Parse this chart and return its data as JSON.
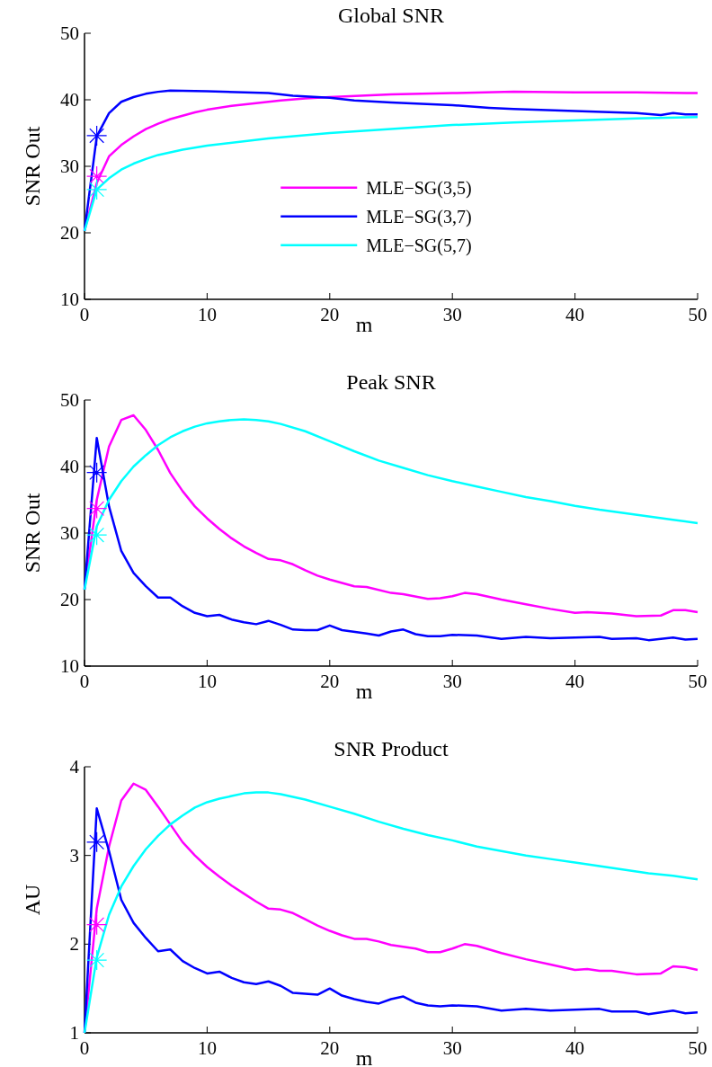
{
  "chart_data": [
    {
      "type": "line",
      "title": "Global SNR",
      "xlabel": "m",
      "ylabel": "SNR Out",
      "xlim": [
        0,
        50
      ],
      "xticks": [
        0,
        10,
        20,
        30,
        40,
        50
      ],
      "ylim": [
        10,
        50
      ],
      "yticks": [
        10,
        20,
        30,
        40,
        50
      ],
      "grid": false,
      "legend": "center",
      "marker": "none",
      "line_style": "solid",
      "series": [
        {
          "name": "MLE−SG(3,5)",
          "color": "#ff00ff",
          "x": [
            0,
            1,
            2,
            3,
            4,
            5,
            6,
            7,
            8,
            9,
            10,
            12,
            14,
            16,
            18,
            20,
            25,
            30,
            35,
            40,
            45,
            50
          ],
          "values": [
            20.3,
            27.5,
            31.5,
            33.2,
            34.5,
            35.6,
            36.4,
            37.1,
            37.6,
            38.1,
            38.5,
            39.1,
            39.5,
            39.9,
            40.2,
            40.4,
            40.8,
            41.0,
            41.2,
            41.1,
            41.1,
            41.0
          ]
        },
        {
          "name": "MLE−SG(3,7)",
          "color": "#0000ff",
          "x": [
            0,
            1,
            2,
            3,
            4,
            5,
            6,
            7,
            10,
            15,
            17,
            20,
            22,
            25,
            30,
            33,
            35,
            40,
            45,
            47,
            48,
            49,
            50
          ],
          "values": [
            20.3,
            34.5,
            38,
            39.7,
            40.4,
            40.9,
            41.2,
            41.4,
            41.3,
            41.0,
            40.6,
            40.3,
            39.9,
            39.6,
            39.2,
            38.8,
            38.6,
            38.3,
            38.0,
            37.7,
            38.0,
            37.8,
            37.8
          ]
        },
        {
          "name": "MLE−SG(5,7)",
          "color": "#00ffff",
          "x": [
            0,
            1,
            2,
            3,
            4,
            5,
            6,
            7,
            8,
            10,
            15,
            20,
            25,
            30,
            35,
            40,
            45,
            50
          ],
          "values": [
            20.3,
            26.5,
            28.2,
            29.5,
            30.4,
            31.1,
            31.7,
            32.1,
            32.5,
            33.1,
            34.2,
            35.0,
            35.6,
            36.2,
            36.6,
            36.9,
            37.2,
            37.4
          ]
        },
        {
          "type": "scatter",
          "marker": "cross",
          "color": "#ff00ff",
          "x": [
            1
          ],
          "values": [
            28.5
          ]
        },
        {
          "type": "scatter",
          "marker": "cross",
          "color": "#0000ff",
          "x": [
            1
          ],
          "values": [
            34.6
          ]
        },
        {
          "type": "scatter",
          "marker": "cross",
          "color": "#00ffff",
          "x": [
            1
          ],
          "values": [
            26.5
          ]
        }
      ]
    },
    {
      "type": "line",
      "title": "Peak SNR",
      "xlabel": "m",
      "ylabel": "SNR Out",
      "xlim": [
        0,
        50
      ],
      "xticks": [
        0,
        10,
        20,
        30,
        40,
        50
      ],
      "ylim": [
        10,
        50
      ],
      "yticks": [
        10,
        20,
        30,
        40,
        50
      ],
      "grid": false,
      "legend": false,
      "marker": "none",
      "line_style": "solid",
      "series": [
        {
          "color": "#ff00ff",
          "x": [
            0,
            1,
            2,
            3,
            4,
            5,
            6,
            7,
            8,
            9,
            10,
            11,
            12,
            13,
            14,
            15,
            16,
            17,
            18,
            19,
            20,
            22,
            23,
            25,
            26,
            28,
            29,
            30,
            31,
            32,
            34,
            36,
            38,
            40,
            41,
            43,
            45,
            47,
            48,
            49,
            50
          ],
          "values": [
            21.5,
            35,
            43,
            47,
            47.7,
            45.5,
            42.5,
            39,
            36.3,
            34,
            32.2,
            30.6,
            29.2,
            28,
            27,
            26.1,
            25.9,
            25.3,
            24.4,
            23.6,
            23,
            22,
            21.9,
            21,
            20.8,
            20.1,
            20.2,
            20.5,
            21,
            20.8,
            20,
            19.3,
            18.6,
            18,
            18.1,
            17.9,
            17.5,
            17.6,
            18.4,
            18.4,
            18.1
          ]
        },
        {
          "color": "#0000ff",
          "x": [
            0,
            1,
            2,
            3,
            4,
            5,
            6,
            7,
            8,
            9,
            10,
            11,
            12,
            13,
            14,
            15,
            16,
            17,
            18,
            19,
            20,
            21,
            23,
            24,
            25,
            26,
            27,
            28,
            29,
            30,
            32,
            34,
            36,
            38,
            40,
            42,
            43,
            45,
            46,
            48,
            49,
            50
          ],
          "values": [
            21.5,
            44.3,
            34,
            27.3,
            24,
            22,
            20.3,
            20.3,
            19,
            18,
            17.5,
            17.7,
            17,
            16.6,
            16.3,
            16.8,
            16.2,
            15.5,
            15.4,
            15.4,
            16.1,
            15.4,
            14.9,
            14.6,
            15.2,
            15.5,
            14.8,
            14.5,
            14.5,
            14.7,
            14.6,
            14.1,
            14.4,
            14.2,
            14.3,
            14.4,
            14.1,
            14.2,
            13.9,
            14.3,
            14.0,
            14.1
          ]
        },
        {
          "color": "#00ffff",
          "x": [
            0,
            1,
            2,
            3,
            4,
            5,
            6,
            7,
            8,
            9,
            10,
            11,
            12,
            13,
            14,
            15,
            16,
            18,
            20,
            22,
            24,
            26,
            28,
            30,
            32,
            34,
            36,
            38,
            40,
            42,
            44,
            46,
            48,
            50
          ],
          "values": [
            21.5,
            31,
            35,
            37.8,
            40,
            41.7,
            43.2,
            44.4,
            45.3,
            46,
            46.5,
            46.8,
            47,
            47.1,
            47,
            46.8,
            46.4,
            45.3,
            43.8,
            42.3,
            40.9,
            39.8,
            38.7,
            37.8,
            37,
            36.2,
            35.4,
            34.8,
            34.1,
            33.5,
            33,
            32.5,
            32,
            31.5
          ]
        },
        {
          "type": "scatter",
          "marker": "cross",
          "color": "#ff00ff",
          "x": [
            1
          ],
          "values": [
            33.7
          ]
        },
        {
          "type": "scatter",
          "marker": "cross",
          "color": "#0000ff",
          "x": [
            1
          ],
          "values": [
            39.1
          ]
        },
        {
          "type": "scatter",
          "marker": "cross",
          "color": "#00ffff",
          "x": [
            1
          ],
          "values": [
            29.7
          ]
        }
      ]
    },
    {
      "type": "line",
      "title": "SNR Product",
      "xlabel": "m",
      "ylabel": "AU",
      "xlim": [
        0,
        50
      ],
      "xticks": [
        0,
        10,
        20,
        30,
        40,
        50
      ],
      "ylim": [
        1,
        4
      ],
      "yticks": [
        1,
        2,
        3,
        4
      ],
      "grid": false,
      "legend": false,
      "marker": "none",
      "line_style": "solid",
      "series": [
        {
          "color": "#ff00ff",
          "x": [
            0,
            1,
            2,
            3,
            4,
            5,
            6,
            7,
            8,
            9,
            10,
            11,
            12,
            13,
            14,
            15,
            16,
            17,
            18,
            19,
            20,
            21,
            22,
            23,
            24,
            25,
            27,
            28,
            29,
            30,
            31,
            32,
            34,
            36,
            38,
            40,
            41,
            42,
            43,
            45,
            47,
            48,
            49,
            50
          ],
          "values": [
            1.0,
            2.4,
            3.1,
            3.62,
            3.81,
            3.74,
            3.55,
            3.35,
            3.15,
            3.0,
            2.87,
            2.76,
            2.66,
            2.57,
            2.48,
            2.4,
            2.39,
            2.35,
            2.28,
            2.21,
            2.15,
            2.1,
            2.06,
            2.06,
            2.03,
            1.99,
            1.95,
            1.91,
            1.91,
            1.95,
            2.0,
            1.98,
            1.9,
            1.83,
            1.77,
            1.71,
            1.72,
            1.7,
            1.7,
            1.66,
            1.67,
            1.75,
            1.74,
            1.71
          ]
        },
        {
          "color": "#0000ff",
          "x": [
            0,
            1,
            2,
            3,
            4,
            5,
            6,
            7,
            8,
            9,
            10,
            11,
            12,
            13,
            14,
            15,
            16,
            17,
            18,
            19,
            20,
            21,
            22,
            23,
            24,
            25,
            26,
            27,
            28,
            29,
            30,
            32,
            34,
            36,
            38,
            40,
            42,
            43,
            45,
            46,
            48,
            49,
            50
          ],
          "values": [
            1.0,
            3.53,
            3.05,
            2.5,
            2.24,
            2.07,
            1.92,
            1.94,
            1.81,
            1.73,
            1.67,
            1.69,
            1.62,
            1.57,
            1.55,
            1.58,
            1.53,
            1.45,
            1.44,
            1.43,
            1.5,
            1.42,
            1.38,
            1.35,
            1.33,
            1.38,
            1.41,
            1.34,
            1.31,
            1.3,
            1.31,
            1.3,
            1.25,
            1.27,
            1.25,
            1.26,
            1.27,
            1.24,
            1.24,
            1.21,
            1.25,
            1.22,
            1.23
          ]
        },
        {
          "color": "#00ffff",
          "x": [
            0,
            1,
            2,
            3,
            4,
            5,
            6,
            7,
            8,
            9,
            10,
            11,
            12,
            13,
            14,
            15,
            16,
            18,
            20,
            22,
            24,
            26,
            28,
            30,
            32,
            34,
            36,
            38,
            40,
            42,
            44,
            46,
            48,
            50
          ],
          "values": [
            1.0,
            1.85,
            2.33,
            2.65,
            2.88,
            3.07,
            3.22,
            3.35,
            3.45,
            3.54,
            3.6,
            3.64,
            3.67,
            3.7,
            3.71,
            3.71,
            3.69,
            3.63,
            3.55,
            3.47,
            3.38,
            3.3,
            3.23,
            3.17,
            3.1,
            3.05,
            3.0,
            2.96,
            2.92,
            2.88,
            2.84,
            2.8,
            2.77,
            2.73
          ]
        },
        {
          "type": "scatter",
          "marker": "cross",
          "color": "#ff00ff",
          "x": [
            1
          ],
          "values": [
            2.22
          ]
        },
        {
          "type": "scatter",
          "marker": "cross",
          "color": "#0000ff",
          "x": [
            1
          ],
          "values": [
            3.15
          ]
        },
        {
          "type": "scatter",
          "marker": "cross",
          "color": "#00ffff",
          "x": [
            1
          ],
          "values": [
            1.82
          ]
        }
      ]
    }
  ]
}
